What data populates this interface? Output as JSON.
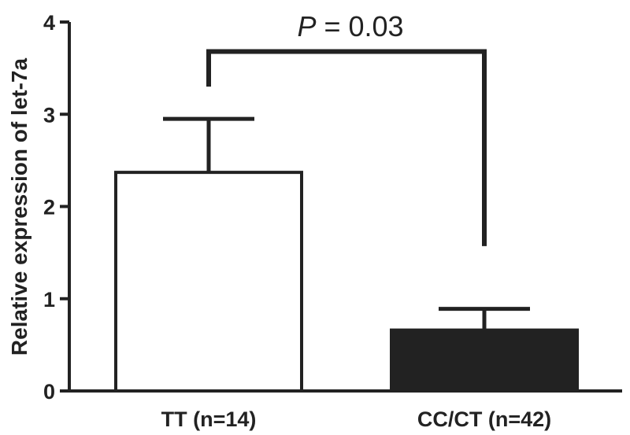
{
  "chart_data": {
    "type": "bar",
    "categories": [
      "TT (n=14)",
      "CC/CT (n=42)"
    ],
    "values": [
      2.37,
      0.66
    ],
    "errors": [
      0.58,
      0.23
    ],
    "bar_colors": [
      "#ffffff",
      "#222222"
    ],
    "edge_color": "#222222",
    "ylabel": "Relative expression of let-7a",
    "ylim": [
      0,
      4
    ],
    "yticks": [
      "0",
      "1",
      "2",
      "3",
      "4"
    ],
    "grid": false,
    "annotation": {
      "p_symbol": "P",
      "p_rest": " = 0.03",
      "bracket_left_y": 3.3,
      "bracket_top_y": 3.68,
      "bracket_right_y": 1.57
    }
  }
}
